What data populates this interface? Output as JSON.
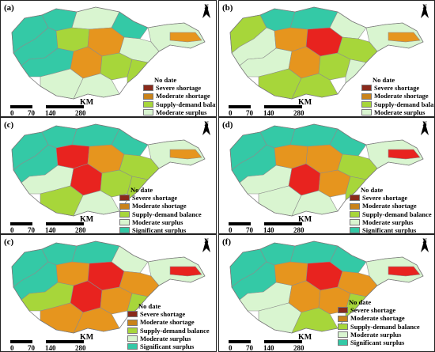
{
  "panels": [
    {
      "label": "(a)"
    },
    {
      "label": "(b)"
    },
    {
      "label": "(c)"
    },
    {
      "label": "(d)"
    },
    {
      "label": "(c)"
    },
    {
      "label": "(f)"
    }
  ],
  "legend": {
    "no_data": "No date",
    "severe_shortage": "Severe shortage",
    "moderate_shortage": "Moderate shortage",
    "balance": "Supply-demand balance",
    "moderate_surplus": "Moderate surplus",
    "significant_surplus": "Significant surplus"
  },
  "scale": {
    "t0": "0",
    "t1": "70",
    "t2": "140",
    "t3": "280",
    "unit": "KM"
  },
  "north": "N",
  "colors": {
    "severe": "#e8231f",
    "moderate_short": "#e6951e",
    "balance": "#a7d63a",
    "moderate_surplus": "#d9f5d0",
    "significant": "#34c9a6",
    "no_data": "#8a2a1b",
    "border": "#8c8c8c"
  }
}
